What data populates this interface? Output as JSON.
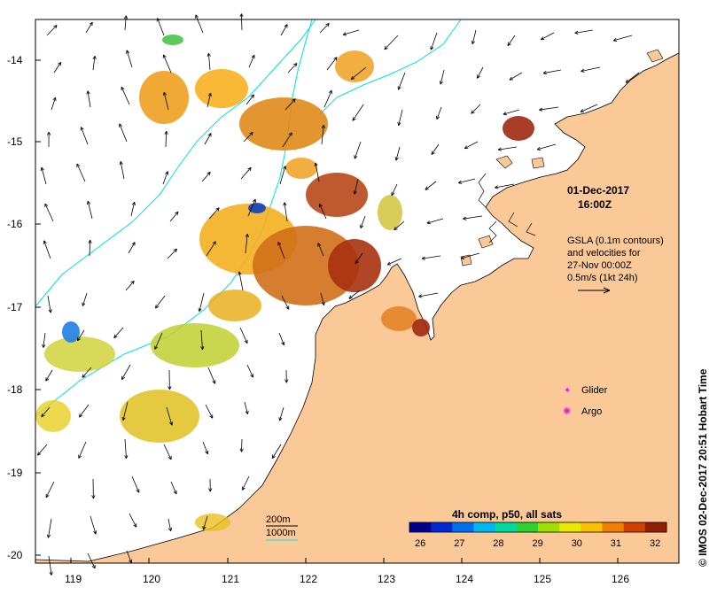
{
  "map": {
    "lon_ticks": [
      "119",
      "120",
      "121",
      "122",
      "123",
      "124",
      "125",
      "126"
    ],
    "lat_ticks": [
      "-14",
      "-15",
      "-16",
      "-17",
      "-18",
      "-19",
      "-20"
    ],
    "lon_range": [
      118.6,
      126.7
    ],
    "lat_range": [
      -20.1,
      -13.6
    ]
  },
  "annotations": {
    "date": "01-Dec-2017",
    "time": "16:00Z",
    "gsla_line1": "GSLA (0.1m contours)",
    "gsla_line2": "and velocities for",
    "gsla_line3": "27-Nov 00:00Z",
    "gsla_line4": "0.5m/s (1kt 24h)"
  },
  "legend": {
    "glider": "Glider",
    "argo": "Argo",
    "glider_color": "#e020e0",
    "argo_color": "#e020e0"
  },
  "depth_key": {
    "d200": "200m",
    "d1000": "1000m",
    "contour_color": "#00e0e0"
  },
  "colorbar": {
    "title": "4h comp, p50, all sats",
    "ticks": [
      "26",
      "27",
      "28",
      "29",
      "30",
      "31",
      "32"
    ],
    "colors": [
      "#00008c",
      "#0028d0",
      "#0070f0",
      "#00b8f0",
      "#00d8a0",
      "#30d030",
      "#a0e000",
      "#e8e800",
      "#f8c000",
      "#f08000",
      "#d04000",
      "#902000"
    ]
  },
  "credit": "© IMOS 02-Dec-2017 20:51 Hobart Time",
  "colors": {
    "land": "#fbc898",
    "ocean": "#ffffff"
  }
}
